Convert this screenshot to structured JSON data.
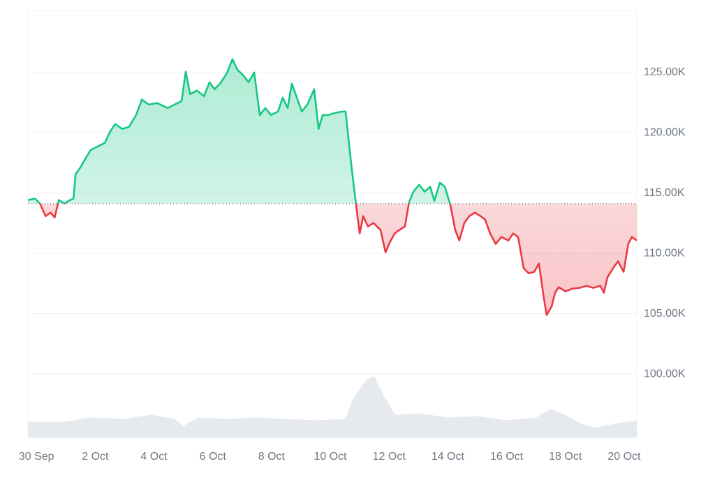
{
  "chart_data": {
    "type": "line",
    "x": [
      -0.29,
      -0.05,
      0.12,
      0.31,
      0.48,
      0.62,
      0.76,
      0.95,
      1.14,
      1.26,
      1.33,
      1.5,
      1.66,
      1.85,
      2.09,
      2.33,
      2.49,
      2.68,
      2.92,
      3.15,
      3.39,
      3.59,
      3.82,
      4.11,
      4.47,
      4.7,
      4.94,
      5.08,
      5.23,
      5.46,
      5.7,
      5.89,
      6.06,
      6.25,
      6.48,
      6.67,
      6.84,
      7.03,
      7.22,
      7.41,
      7.6,
      7.79,
      7.98,
      8.22,
      8.38,
      8.55,
      8.69,
      8.86,
      9.03,
      9.22,
      9.45,
      9.6,
      9.74,
      9.93,
      10.17,
      10.4,
      10.52,
      10.71,
      10.88,
      11.0,
      11.12,
      11.28,
      11.47,
      11.71,
      11.88,
      12.02,
      12.19,
      12.35,
      12.54,
      12.68,
      12.83,
      13.02,
      13.21,
      13.4,
      13.54,
      13.73,
      13.9,
      14.09,
      14.25,
      14.39,
      14.56,
      14.73,
      14.92,
      15.11,
      15.27,
      15.44,
      15.63,
      15.82,
      16.06,
      16.22,
      16.39,
      16.58,
      16.75,
      16.94,
      17.1,
      17.24,
      17.36,
      17.53,
      17.65,
      17.77,
      18.0,
      18.24,
      18.48,
      18.72,
      18.95,
      19.19,
      19.31,
      19.43,
      19.62,
      19.79,
      19.98,
      20.14,
      20.26,
      20.43
    ],
    "series": [
      {
        "color_above": "#16c784",
        "color_below": "#ea3943",
        "values": [
          114420,
          114540,
          114130,
          113090,
          113380,
          112980,
          114420,
          114130,
          114420,
          114540,
          116560,
          117140,
          117830,
          118580,
          118870,
          119160,
          120030,
          120720,
          120320,
          120490,
          121470,
          122750,
          122340,
          122460,
          122050,
          122340,
          122630,
          125060,
          123210,
          123500,
          123030,
          124190,
          123610,
          124080,
          124940,
          126100,
          125230,
          124770,
          124190,
          125000,
          121470,
          122050,
          121470,
          121760,
          122920,
          122050,
          124080,
          122920,
          121760,
          122340,
          123610,
          120320,
          121470,
          121470,
          121650,
          121760,
          121760,
          117430,
          113960,
          111650,
          113090,
          112230,
          112520,
          111940,
          110090,
          110900,
          111650,
          111940,
          112230,
          114250,
          115120,
          115690,
          115120,
          115520,
          114360,
          115870,
          115520,
          113960,
          111940,
          111070,
          112520,
          113090,
          113380,
          113090,
          112800,
          111650,
          110780,
          111360,
          111070,
          111650,
          111360,
          108760,
          108350,
          108470,
          109160,
          106740,
          104890,
          105580,
          106740,
          107200,
          106850,
          107080,
          107140,
          107310,
          107140,
          107310,
          106740,
          108010,
          108760,
          109340,
          108470,
          110780,
          111360,
          111070
        ]
      }
    ],
    "baseline": 114130,
    "volume": {
      "color": "#e6e9ee",
      "x": [
        -0.29,
        1,
        1.8,
        3,
        3.9,
        4.7,
        5,
        5.5,
        6.5,
        7.5,
        8.5,
        9.5,
        10.5,
        10.8,
        11.2,
        11.5,
        11.8,
        12.2,
        13,
        14,
        15,
        16,
        17,
        17.5,
        18,
        18.5,
        19,
        19.8,
        20.43
      ],
      "values": [
        11,
        11,
        14,
        13,
        16,
        13,
        8,
        14,
        13,
        14,
        13,
        12,
        13,
        28,
        40,
        43,
        30,
        16,
        17,
        14,
        15,
        12,
        14,
        20,
        16,
        10,
        7,
        10,
        12
      ]
    },
    "y2lim": [
      0,
      300
    ],
    "xlim": [
      -0.29,
      20.43
    ],
    "xticks": [
      {
        "value": 0,
        "label": "30 Sep"
      },
      {
        "value": 2,
        "label": "2 Oct"
      },
      {
        "value": 4,
        "label": "4 Oct"
      },
      {
        "value": 6,
        "label": "6 Oct"
      },
      {
        "value": 8,
        "label": "8 Oct"
      },
      {
        "value": 10,
        "label": "10 Oct"
      },
      {
        "value": 12,
        "label": "12 Oct"
      },
      {
        "value": 14,
        "label": "14 Oct"
      },
      {
        "value": 16,
        "label": "16 Oct"
      },
      {
        "value": 18,
        "label": "18 Oct"
      },
      {
        "value": 20,
        "label": "20 Oct"
      }
    ],
    "ylim": [
      94740,
      130140
    ],
    "yticks": [
      {
        "value": 100000,
        "label": "100.00K"
      },
      {
        "value": 105000,
        "label": "105.00K"
      },
      {
        "value": 110000,
        "label": "110.00K"
      },
      {
        "value": 115000,
        "label": "115.00K"
      },
      {
        "value": 120000,
        "label": "120.00K"
      },
      {
        "value": 125000,
        "label": "125.00K"
      }
    ],
    "grid": true
  }
}
